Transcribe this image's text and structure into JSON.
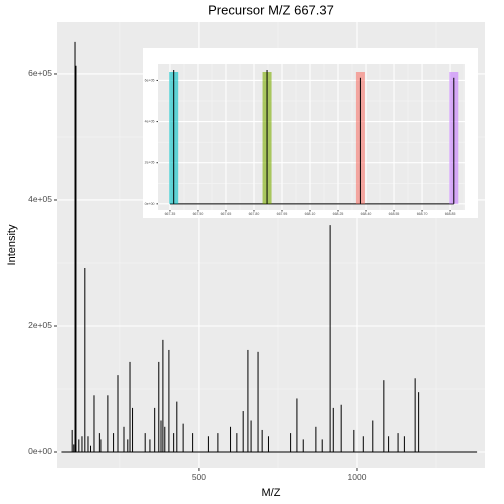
{
  "chart_data": [
    {
      "type": "spectrum",
      "title": "Precursor M/Z 667.37",
      "x_label": "M/Z",
      "y_label": "Intensity",
      "xlim": [
        51,
        1405
      ],
      "ylim": [
        -25400,
        682500
      ],
      "xticks": [
        500,
        1000
      ],
      "yticks": [
        {
          "value": 0,
          "label": "0e+00"
        },
        {
          "value": 200000,
          "label": "2e+05"
        },
        {
          "value": 400000,
          "label": "4e+05"
        },
        {
          "value": 600000,
          "label": "6e+05"
        }
      ],
      "grid": true,
      "color": "#000000",
      "x": [
        65,
        99,
        104,
        108,
        111,
        120,
        130,
        139,
        149,
        157,
        168,
        185,
        190,
        212,
        230,
        244,
        263,
        275,
        282,
        290,
        330,
        345,
        360,
        373,
        380,
        386,
        392,
        405,
        420,
        430,
        450,
        480,
        530,
        560,
        600,
        620,
        640,
        655,
        665,
        687,
        700,
        720,
        790,
        810,
        830,
        870,
        890,
        915,
        925,
        950,
        990,
        1020,
        1050,
        1085,
        1100,
        1130,
        1150,
        1184,
        1195,
        1380
      ],
      "values": [
        0,
        35000,
        12000,
        651000,
        613000,
        20000,
        25000,
        292000,
        25000,
        10000,
        90000,
        30000,
        20000,
        90000,
        30000,
        122000,
        40000,
        20000,
        143000,
        70000,
        30000,
        20000,
        70000,
        143000,
        50000,
        178000,
        40000,
        162000,
        30000,
        80000,
        45000,
        30000,
        25000,
        30000,
        40000,
        30000,
        65000,
        162000,
        50000,
        159000,
        35000,
        25000,
        30000,
        85000,
        20000,
        40000,
        20000,
        360000,
        70000,
        75000,
        35000,
        25000,
        50000,
        114000,
        25000,
        30000,
        25000,
        117000,
        95000,
        0
      ]
    },
    {
      "type": "isotope-inset",
      "xlim": [
        667.286,
        668.93
      ],
      "ylim": [
        -30000,
        680000
      ],
      "xticks": [
        {
          "value": 667.35,
          "label": "667.35"
        },
        {
          "value": 667.5,
          "label": "667.50"
        },
        {
          "value": 667.65,
          "label": "667.65"
        },
        {
          "value": 667.8,
          "label": "667.80"
        },
        {
          "value": 667.95,
          "label": "667.95"
        },
        {
          "value": 668.1,
          "label": "668.10"
        },
        {
          "value": 668.25,
          "label": "668.25"
        },
        {
          "value": 668.4,
          "label": "668.40"
        },
        {
          "value": 668.55,
          "label": "668.55"
        },
        {
          "value": 668.7,
          "label": "668.70"
        },
        {
          "value": 668.85,
          "label": "668.85"
        }
      ],
      "yticks": [
        {
          "value": 0,
          "label": "0e+00"
        },
        {
          "value": 200000,
          "label": "2e+05"
        },
        {
          "value": 400000,
          "label": "4e+05"
        },
        {
          "value": 600000,
          "label": "6e+05"
        }
      ],
      "grid": true,
      "x": [
        667.37,
        667.87,
        668.37,
        668.87
      ],
      "values": [
        651000,
        651000,
        613000,
        613000
      ],
      "colors": [
        "#00bfc4",
        "#7cae00",
        "#f8766d",
        "#c77cff"
      ]
    }
  ]
}
